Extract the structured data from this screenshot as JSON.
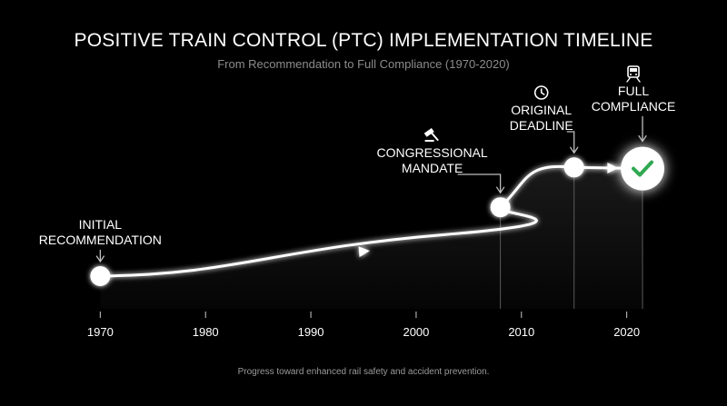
{
  "title": "POSITIVE TRAIN CONTROL (PTC) IMPLEMENTATION TIMELINE",
  "subtitle": "From Recommendation to Full Compliance (1970-2020)",
  "caption": "Progress toward enhanced rail safety and accident prevention.",
  "axis": {
    "min": 1966,
    "max": 2024,
    "ticks": [
      "1970",
      "1980",
      "1990",
      "2000",
      "2010",
      "2020"
    ]
  },
  "milestones": [
    {
      "id": "initial",
      "lines": [
        "INITIAL",
        "RECOMMENDATION"
      ],
      "year": 1970,
      "level": 0.03,
      "icon": "none",
      "marker": "dot"
    },
    {
      "id": "mandate",
      "lines": [
        "CONGRESSIONAL",
        "MANDATE"
      ],
      "year": 2008,
      "level": 0.6,
      "icon": "gavel-icon",
      "marker": "dot"
    },
    {
      "id": "deadline",
      "lines": [
        "ORIGINAL",
        "DEADLINE"
      ],
      "year": 2015,
      "level": 0.93,
      "icon": "clock-icon",
      "marker": "dot"
    },
    {
      "id": "full",
      "lines": [
        "FULL",
        "COMPLIANCE"
      ],
      "year": 2021.5,
      "level": 0.92,
      "icon": "train-icon",
      "marker": "check"
    }
  ],
  "colors": {
    "background": "#000000",
    "line": "#ffffff",
    "guide": "#5a5a5a",
    "subtitle": "#8c8c8c",
    "check": "#2fa84f"
  }
}
